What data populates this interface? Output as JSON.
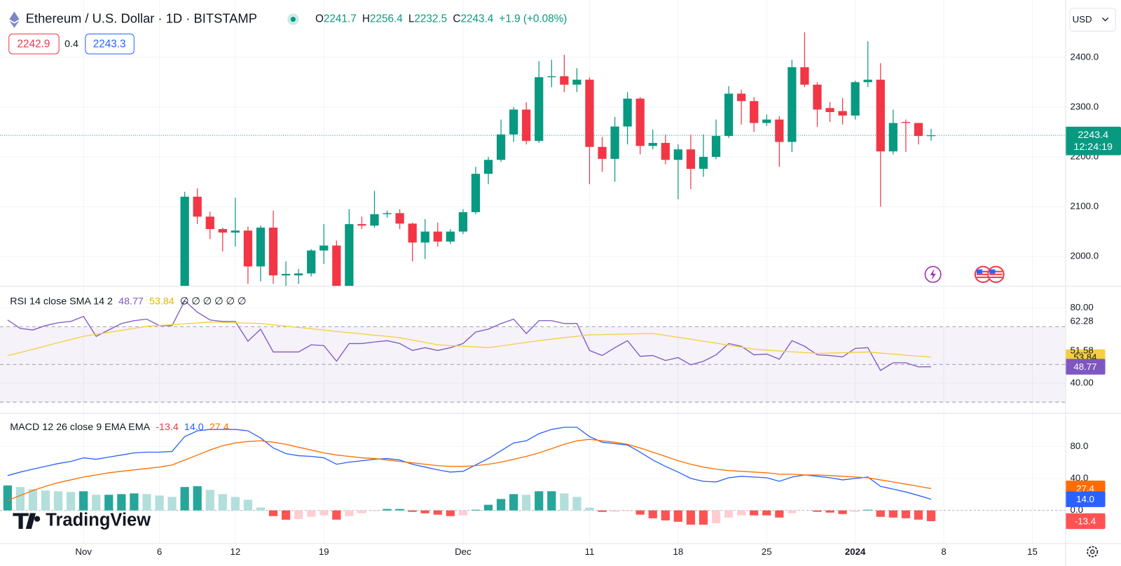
{
  "header": {
    "title": "Ethereum / U.S. Dollar · 1D · BITSTAMP",
    "ohlc_labels": [
      "O",
      "H",
      "L",
      "C"
    ],
    "change": "+1.9 (+0.08%)",
    "bid": 2242.9,
    "spread": 0.4,
    "ask": 2243.3,
    "currency": "USD",
    "countdown": "12:24:19",
    "logo": "TradingView"
  },
  "chart_data": [
    {
      "type": "candlestick",
      "x": [
        8,
        9,
        10,
        11,
        12,
        13,
        14,
        15,
        16,
        17,
        18,
        19,
        20,
        21,
        22,
        23,
        24,
        25,
        26,
        27,
        28,
        29,
        30,
        31,
        32,
        33,
        34,
        35,
        36,
        37,
        38,
        39,
        40,
        41,
        42,
        43,
        44,
        45,
        46,
        47,
        48,
        49,
        50,
        51,
        52,
        53,
        54,
        55,
        56,
        57,
        58,
        59,
        60,
        61,
        62,
        63,
        64,
        65,
        66,
        67
      ],
      "open": [
        1885,
        2120,
        2080,
        2055,
        2048,
        2052,
        1980,
        2058,
        1962,
        1962,
        1966,
        2012,
        2022,
        1935,
        2065,
        2062,
        2085,
        2087,
        2066,
        2028,
        2050,
        2030,
        2050,
        2089,
        2166,
        2194,
        2245,
        2295,
        2232,
        2360,
        2362,
        2345,
        2355,
        2220,
        2196,
        2261,
        2317,
        2222,
        2228,
        2194,
        2215,
        2176,
        2200,
        2242,
        2327,
        2312,
        2268,
        2275,
        2230,
        2380,
        2345,
        2298,
        2292,
        2283,
        2350,
        2355,
        2211,
        2270,
        2268,
        2241.7
      ],
      "high": [
        2130,
        2137,
        2090,
        2058,
        2118,
        2060,
        2062,
        2092,
        1990,
        1975,
        2015,
        2065,
        2032,
        2095,
        2080,
        2132,
        2092,
        2095,
        2068,
        2075,
        2068,
        2055,
        2095,
        2180,
        2200,
        2275,
        2300,
        2310,
        2392,
        2395,
        2405,
        2378,
        2360,
        2240,
        2280,
        2330,
        2320,
        2255,
        2245,
        2225,
        2245,
        2245,
        2275,
        2342,
        2335,
        2320,
        2285,
        2282,
        2395,
        2450,
        2350,
        2310,
        2318,
        2353,
        2432,
        2388,
        2295,
        2275,
        2268,
        2256.4
      ],
      "low": [
        1880,
        2065,
        2035,
        2010,
        2020,
        1945,
        1950,
        1945,
        1930,
        1945,
        1960,
        1985,
        1932,
        1930,
        2055,
        2058,
        2078,
        2055,
        1990,
        1995,
        2020,
        2025,
        2045,
        2085,
        2145,
        2190,
        2230,
        2225,
        2228,
        2340,
        2330,
        2330,
        2145,
        2170,
        2150,
        2225,
        2205,
        2215,
        2185,
        2115,
        2135,
        2160,
        2195,
        2238,
        2265,
        2250,
        2262,
        2180,
        2210,
        2340,
        2260,
        2270,
        2265,
        2275,
        2340,
        2100,
        2205,
        2210,
        2225,
        2232.5
      ],
      "close": [
        2120,
        2080,
        2055,
        2048,
        2052,
        1980,
        2058,
        1962,
        1965,
        1966,
        2012,
        2022,
        1935,
        2065,
        2062,
        2085,
        2087,
        2066,
        2028,
        2050,
        2030,
        2050,
        2089,
        2166,
        2194,
        2245,
        2295,
        2232,
        2360,
        2362,
        2345,
        2355,
        2220,
        2196,
        2261,
        2317,
        2222,
        2228,
        2194,
        2215,
        2176,
        2200,
        2242,
        2327,
        2312,
        2268,
        2275,
        2230,
        2380,
        2345,
        2295,
        2290,
        2283,
        2350,
        2355,
        2211,
        2268,
        2268,
        2242,
        2243.4
      ],
      "up_color": "#089981",
      "down_color": "#f23645",
      "xlim": [
        -6.6,
        77.6
      ],
      "xticks": [
        {
          "value": 0,
          "label": "Nov"
        },
        6,
        12,
        19,
        {
          "value": 30,
          "label": "Dec"
        },
        {
          "value": 40,
          "label": "11"
        },
        {
          "value": 47,
          "label": "18"
        },
        {
          "value": 54,
          "label": "25"
        },
        {
          "value": 61,
          "label": "2024"
        },
        {
          "value": 68,
          "label": "8"
        },
        {
          "value": 75,
          "label": "15"
        }
      ],
      "ylim": [
        1941,
        2515
      ],
      "yticks": [
        {
          "value": 2000,
          "label": "2000.0"
        },
        {
          "value": 2100,
          "label": "2100.0"
        },
        {
          "value": 2200,
          "label": "2200.0"
        },
        {
          "value": 2300,
          "label": "2300.0"
        },
        {
          "value": 2400,
          "label": "2400.0"
        }
      ],
      "grid": true
    },
    {
      "type": "line",
      "title": "RSI 14 close SMA 14 2",
      "x": [
        -6,
        -5,
        -4,
        -3,
        -2,
        -1,
        0,
        1,
        2,
        3,
        4,
        5,
        6,
        7,
        8,
        9,
        10,
        11,
        12,
        13,
        14,
        15,
        16,
        17,
        18,
        19,
        20,
        21,
        22,
        23,
        24,
        25,
        26,
        27,
        28,
        29,
        30,
        31,
        32,
        33,
        34,
        35,
        36,
        37,
        38,
        39,
        40,
        41,
        42,
        43,
        44,
        45,
        46,
        47,
        48,
        49,
        50,
        51,
        52,
        53,
        54,
        55,
        56,
        57,
        58,
        59,
        60,
        61,
        62,
        63,
        64,
        65,
        66,
        67
      ],
      "series": [
        {
          "color": "#7e57c2",
          "values": [
            73.6,
            69.1,
            68.3,
            70.6,
            72.1,
            72.8,
            75.5,
            64.9,
            68.3,
            71.7,
            73.2,
            74.0,
            70.6,
            70.6,
            83.8,
            77.7,
            73.6,
            72.8,
            72.8,
            62.3,
            68.7,
            56.6,
            56.6,
            56.6,
            60.4,
            60.0,
            51.7,
            61.1,
            61.1,
            61.9,
            62.6,
            61.1,
            57.4,
            58.9,
            57.4,
            58.9,
            61.1,
            67.2,
            68.7,
            71.7,
            74.0,
            66.4,
            73.2,
            73.2,
            71.7,
            71.7,
            57.4,
            54.7,
            58.9,
            62.6,
            54.3,
            54.7,
            52.1,
            53.6,
            49.8,
            51.7,
            55.1,
            61.1,
            59.6,
            55.1,
            55.5,
            52.8,
            62.6,
            59.6,
            55.1,
            54.7,
            54.0,
            58.5,
            58.9,
            46.8,
            50.9,
            50.9,
            48.7,
            48.77
          ]
        },
        {
          "color": "#f5cf3c",
          "values": [
            54.6,
            56.3,
            58.0,
            59.8,
            61.5,
            63.2,
            64.9,
            66.0,
            67.0,
            68.1,
            69.1,
            70.2,
            70.7,
            71.1,
            71.6,
            72.0,
            72.5,
            72.3,
            72.1,
            71.9,
            71.7,
            71.0,
            70.3,
            69.6,
            68.9,
            68.2,
            67.5,
            66.8,
            66.2,
            65.5,
            64.9,
            64.2,
            62.9,
            61.7,
            60.4,
            60.0,
            59.7,
            59.3,
            58.9,
            59.8,
            60.8,
            61.7,
            62.6,
            63.4,
            64.2,
            64.9,
            65.7,
            65.8,
            66.0,
            66.1,
            66.3,
            66.4,
            65.4,
            64.4,
            63.4,
            62.3,
            61.3,
            60.2,
            59.2,
            58.1,
            57.6,
            57.2,
            56.7,
            56.3,
            55.8,
            56.0,
            56.2,
            56.4,
            56.6,
            56.0,
            55.5,
            54.9,
            54.4,
            53.84
          ]
        }
      ],
      "placeholders": "∅ ∅ ∅ ∅ ∅ ∅",
      "axis_notes": [
        62.28,
        51.58
      ],
      "bands": [
        70,
        50,
        30
      ],
      "band_color": "#7e57c2",
      "ylim": [
        24.2,
        91.3
      ],
      "yticks": [
        {
          "value": 80,
          "label": "80.00"
        },
        {
          "value": 40,
          "label": "40.00"
        }
      ]
    },
    {
      "type": "macd",
      "title": "MACD 12 26 close 9 EMA EMA",
      "x": [
        -6,
        -5,
        -4,
        -3,
        -2,
        -1,
        0,
        1,
        2,
        3,
        4,
        5,
        6,
        7,
        8,
        9,
        10,
        11,
        12,
        13,
        14,
        15,
        16,
        17,
        18,
        19,
        20,
        21,
        22,
        23,
        24,
        25,
        26,
        27,
        28,
        29,
        30,
        31,
        32,
        33,
        34,
        35,
        36,
        37,
        38,
        39,
        40,
        41,
        42,
        43,
        44,
        45,
        46,
        47,
        48,
        49,
        50,
        51,
        52,
        53,
        54,
        55,
        56,
        57,
        58,
        59,
        60,
        61,
        62,
        63,
        64,
        65,
        66,
        67
      ],
      "histogram": {
        "colors": [
          "#26a69a",
          "#b2dfdb",
          "#ffcdd2",
          "#ff5252"
        ],
        "values": [
          31.2,
          29.3,
          26.7,
          24.9,
          24.0,
          23.1,
          24.0,
          19.6,
          19.6,
          20.4,
          21.3,
          20.5,
          18.7,
          16.9,
          29.3,
          30.3,
          25.7,
          20.4,
          16.9,
          13.4,
          3.6,
          -7.1,
          -11.6,
          -10.7,
          -8.0,
          -6.2,
          -11.5,
          -7.2,
          -3.6,
          -0.9,
          1.8,
          1.8,
          -1.8,
          -3.6,
          -5.3,
          -7.1,
          -6.2,
          0.9,
          7.1,
          14.3,
          20.4,
          19.5,
          24.0,
          24.0,
          21.3,
          16.9,
          3.5,
          -1.8,
          -1.7,
          -0.9,
          -5.3,
          -9.8,
          -12.5,
          -14.2,
          -17.8,
          -17.8,
          -16.0,
          -8.9,
          -6.2,
          -6.2,
          -6.2,
          -8.9,
          -3.5,
          0,
          -1.7,
          -2.7,
          -4.5,
          -1.8,
          0.9,
          -8.0,
          -8.9,
          -9.8,
          -11.5,
          -13.4
        ]
      },
      "series": [
        {
          "color": "#2962ff",
          "values": [
            43.6,
            48,
            51.6,
            55.1,
            58.7,
            61.3,
            65.8,
            64,
            66.7,
            69.3,
            72,
            72.9,
            72.9,
            73.8,
            92.4,
            99.6,
            101.3,
            101.3,
            101.3,
            99.6,
            90.7,
            78.2,
            71.1,
            68.4,
            67.6,
            65.8,
            57.8,
            60.4,
            62.2,
            64,
            64.9,
            63.1,
            57.8,
            54.2,
            50.7,
            48,
            48.9,
            56.9,
            64.9,
            74.7,
            84.4,
            87.1,
            96,
            101.3,
            104,
            104,
            92.4,
            85.3,
            83.6,
            81.8,
            72.9,
            63.1,
            55.1,
            48,
            40,
            36.4,
            35.6,
            40.9,
            42.7,
            41.8,
            40.9,
            36.4,
            41.8,
            44.4,
            42.7,
            40.9,
            38.2,
            40,
            41.8,
            30.2,
            26.7,
            23.1,
            18.7,
            14.0
          ],
          "value_labels": {
            "73": "14.0"
          }
        },
        {
          "color": "#ff6d00",
          "values": [
            12.4,
            18.7,
            24.9,
            30.2,
            34.7,
            38.2,
            41.8,
            44.4,
            47.1,
            48.9,
            50.7,
            52.4,
            54.2,
            56.9,
            63.1,
            69.3,
            75.6,
            80.9,
            84.4,
            86.2,
            87.1,
            85.3,
            82.7,
            79.1,
            75.6,
            72,
            69.3,
            67.6,
            65.8,
            64.9,
            63.1,
            61.3,
            59.6,
            57.8,
            56,
            55.1,
            55.1,
            56,
            57.8,
            60.4,
            64,
            67.6,
            72,
            77.3,
            82.7,
            87.1,
            88.9,
            87.1,
            85.3,
            82.7,
            78.2,
            72.9,
            67.6,
            62.2,
            57.8,
            54.2,
            51.6,
            49.8,
            48.9,
            48,
            47.1,
            45.3,
            45.3,
            44.4,
            44.4,
            43.6,
            42.7,
            41.8,
            40.9,
            38.2,
            35.6,
            32.9,
            30.2,
            27.4
          ]
        }
      ],
      "ylim": [
        -40.9,
        120.9
      ],
      "yticks": [
        {
          "value": 80,
          "label": "80.0"
        },
        {
          "value": 40,
          "label": "40.0"
        },
        {
          "value": 0,
          "label": "0.0"
        }
      ]
    }
  ]
}
